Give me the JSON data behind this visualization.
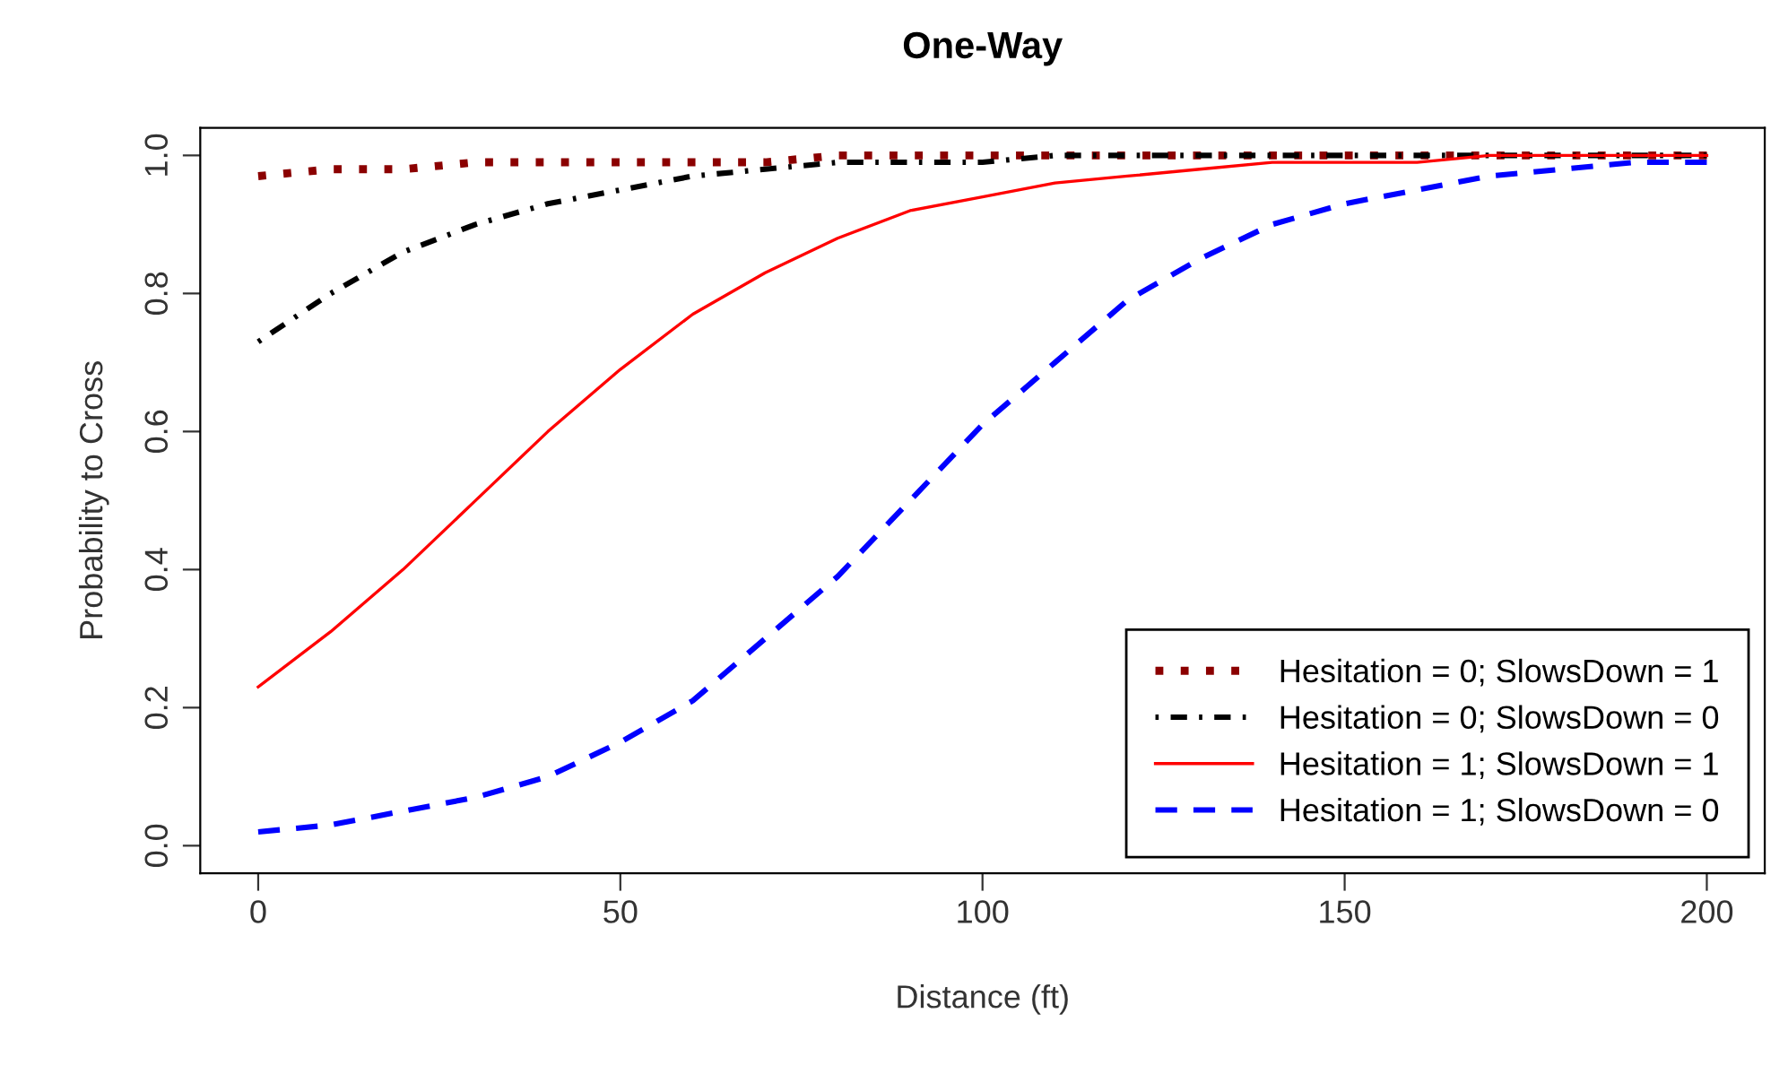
{
  "chart_data": {
    "type": "line",
    "title": "One-Way",
    "xlabel": "Distance (ft)",
    "ylabel": "Probability to Cross",
    "x": [
      0,
      10,
      20,
      30,
      40,
      50,
      60,
      70,
      80,
      90,
      100,
      110,
      120,
      130,
      140,
      150,
      160,
      170,
      180,
      190,
      200
    ],
    "series": [
      {
        "name": "Hesitation = 0; SlowsDown = 1",
        "color": "#8b0000",
        "line_style": "dotted",
        "values": [
          0.97,
          0.98,
          0.98,
          0.99,
          0.99,
          0.99,
          0.99,
          0.99,
          1.0,
          1.0,
          1.0,
          1.0,
          1.0,
          1.0,
          1.0,
          1.0,
          1.0,
          1.0,
          1.0,
          1.0,
          1.0
        ]
      },
      {
        "name": "Hesitation = 0; SlowsDown = 0",
        "color": "#000000",
        "line_style": "dashdot",
        "values": [
          0.73,
          0.8,
          0.86,
          0.9,
          0.93,
          0.95,
          0.97,
          0.98,
          0.99,
          0.99,
          0.99,
          1.0,
          1.0,
          1.0,
          1.0,
          1.0,
          1.0,
          1.0,
          1.0,
          1.0,
          1.0
        ]
      },
      {
        "name": "Hesitation = 1; SlowsDown = 1",
        "color": "#ff0000",
        "line_style": "solid",
        "values": [
          0.23,
          0.31,
          0.4,
          0.5,
          0.6,
          0.69,
          0.77,
          0.83,
          0.88,
          0.92,
          0.94,
          0.96,
          0.97,
          0.98,
          0.99,
          0.99,
          0.99,
          1.0,
          1.0,
          1.0,
          1.0
        ]
      },
      {
        "name": "Hesitation = 1; SlowsDown = 0",
        "color": "#0000ff",
        "line_style": "dashed",
        "values": [
          0.02,
          0.03,
          0.05,
          0.07,
          0.1,
          0.15,
          0.21,
          0.3,
          0.39,
          0.5,
          0.61,
          0.7,
          0.79,
          0.85,
          0.9,
          0.93,
          0.95,
          0.97,
          0.98,
          0.99,
          0.99
        ]
      }
    ],
    "xlim": [
      -8,
      208
    ],
    "ylim": [
      -0.04,
      1.04
    ],
    "xticks": [
      0,
      50,
      100,
      150,
      200
    ],
    "yticks": [
      {
        "value": 0,
        "label": "0.0"
      },
      {
        "value": 0.2,
        "label": "0.2"
      },
      {
        "value": 0.4,
        "label": "0.4"
      },
      {
        "value": 0.6,
        "label": "0.6"
      },
      {
        "value": 0.8,
        "label": "0.8"
      },
      {
        "value": 1.0,
        "label": "1.0"
      }
    ],
    "grid": false,
    "legend": "bottom right",
    "marker": "none"
  }
}
